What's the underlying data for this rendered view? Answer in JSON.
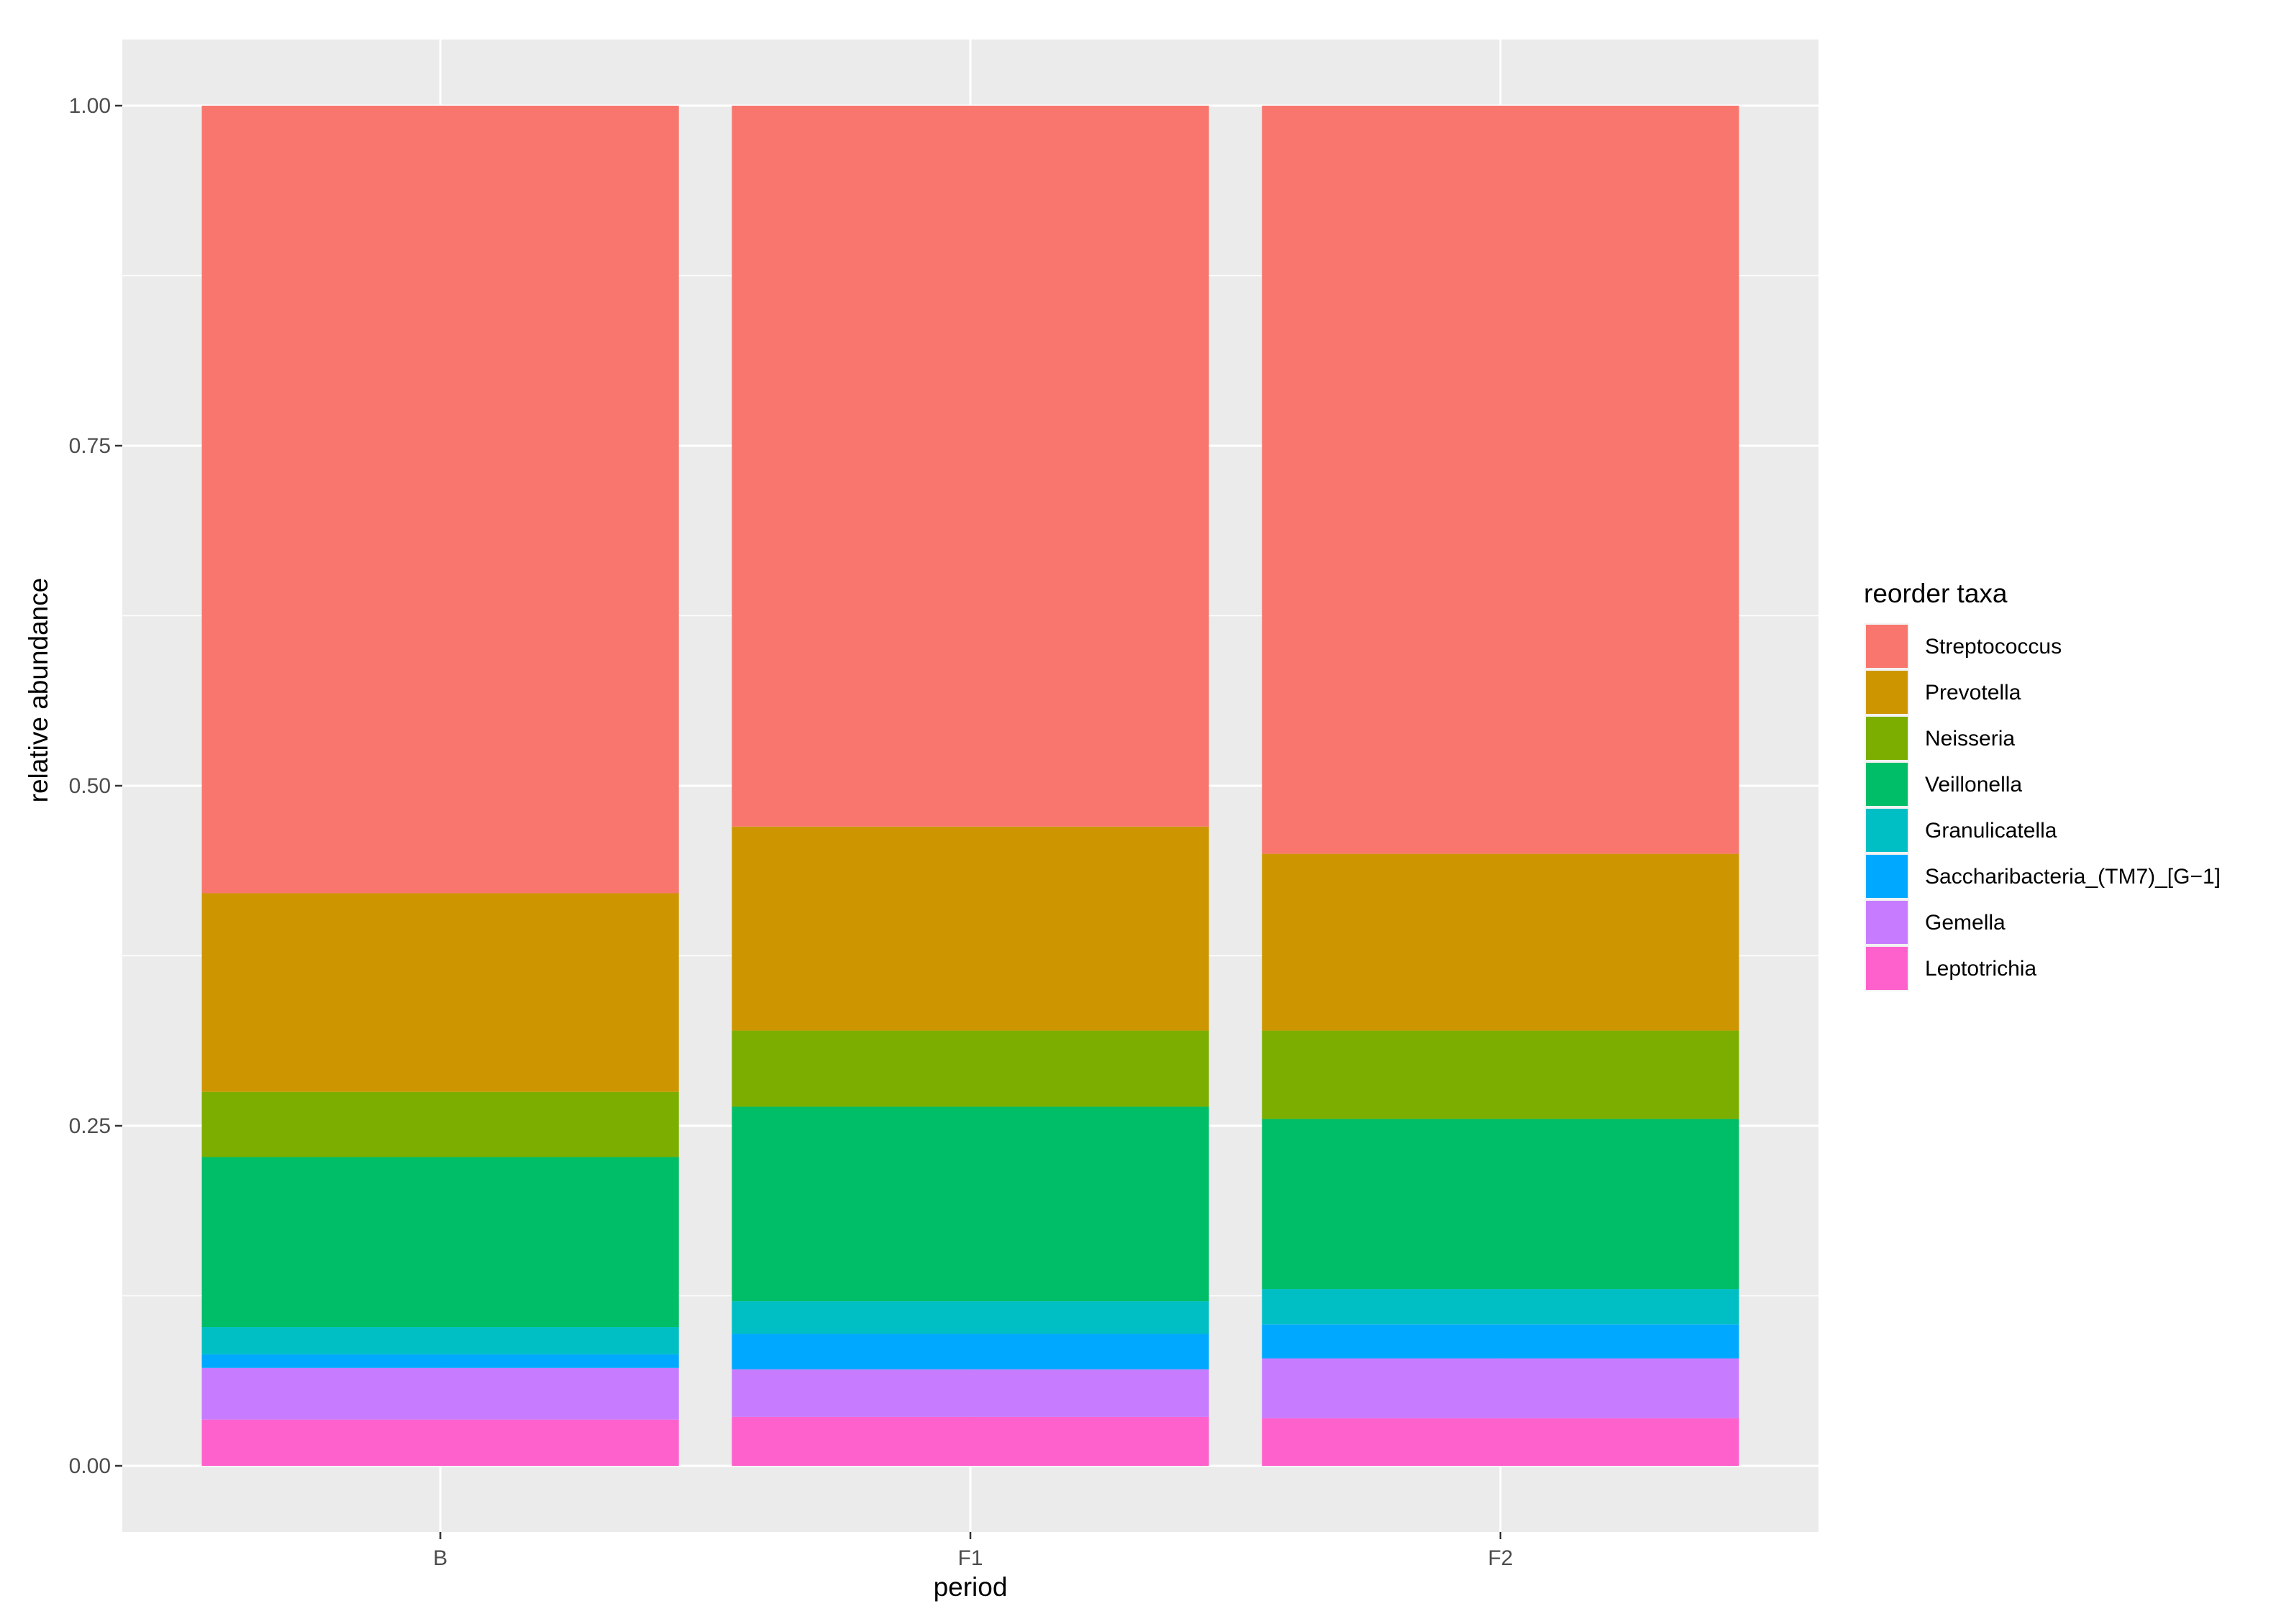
{
  "chart_data": {
    "type": "bar",
    "stacked": true,
    "categories": [
      "B",
      "F1",
      "F2"
    ],
    "xlabel": "period",
    "ylabel": "relative abundance",
    "ylim": [
      0,
      1
    ],
    "yticks": [
      0,
      0.25,
      0.5,
      0.75,
      1
    ],
    "ytick_labels": [
      "0.00",
      "0.25",
      "0.50",
      "0.75",
      "1.00"
    ],
    "grid": true,
    "legend_title": "reorder taxa",
    "legend_position": "right",
    "series": [
      {
        "name": "Streptococcus",
        "color": "#F8766D",
        "values": [
          0.579,
          0.53,
          0.55
        ]
      },
      {
        "name": "Prevotella",
        "color": "#CD9600",
        "values": [
          0.146,
          0.15,
          0.13
        ]
      },
      {
        "name": "Neisseria",
        "color": "#7CAE00",
        "values": [
          0.048,
          0.056,
          0.065
        ]
      },
      {
        "name": "Veillonella",
        "color": "#00BE67",
        "values": [
          0.125,
          0.143,
          0.125
        ]
      },
      {
        "name": "Granulicatella",
        "color": "#00BFC4",
        "values": [
          0.02,
          0.024,
          0.026
        ]
      },
      {
        "name": "Saccharibacteria_(TM7)_[G−1]",
        "color": "#00A9FF",
        "values": [
          0.01,
          0.026,
          0.025
        ]
      },
      {
        "name": "Gemella",
        "color": "#C77CFF",
        "values": [
          0.038,
          0.035,
          0.044
        ]
      },
      {
        "name": "Leptotrichia",
        "color": "#FF61CC",
        "values": [
          0.034,
          0.036,
          0.035
        ]
      }
    ]
  }
}
